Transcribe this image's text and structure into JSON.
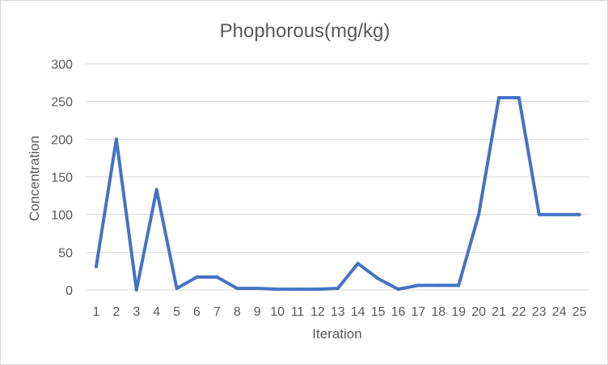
{
  "chart_data": {
    "type": "line",
    "title": "Phophorous(mg/kg)",
    "xlabel": "Iteration",
    "ylabel": "Concentration",
    "categories": [
      "1",
      "2",
      "3",
      "4",
      "5",
      "6",
      "7",
      "8",
      "9",
      "10",
      "11",
      "12",
      "13",
      "14",
      "15",
      "16",
      "17",
      "18",
      "19",
      "20",
      "21",
      "22",
      "23",
      "24",
      "25"
    ],
    "series": [
      {
        "values": [
          31,
          200,
          0,
          133,
          2,
          17,
          17,
          2,
          2,
          1,
          1,
          1,
          2,
          35,
          15,
          1,
          6,
          6,
          6,
          100,
          255,
          255,
          100,
          100,
          100
        ]
      }
    ],
    "ylim": [
      0,
      300
    ],
    "yticks": [
      0,
      50,
      100,
      150,
      200,
      250,
      300
    ],
    "grid": true,
    "legend": "none",
    "colors": {
      "series": "#4472c4",
      "grid": "#d9d9d9",
      "text": "#595959"
    }
  }
}
